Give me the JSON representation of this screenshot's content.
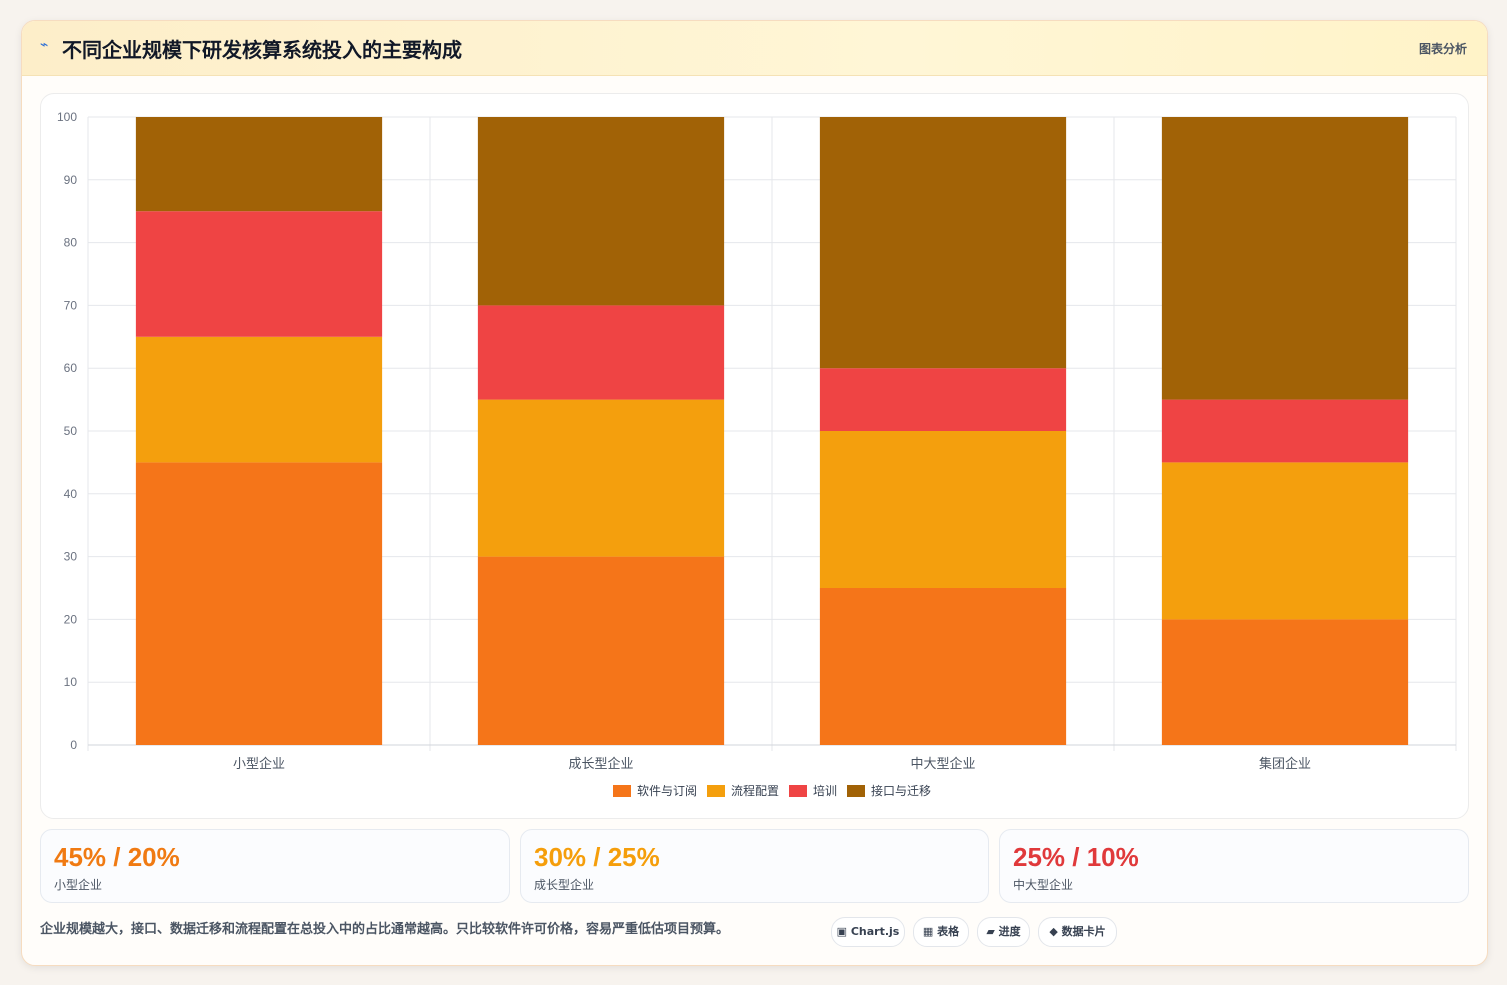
{
  "header": {
    "icon": "bolt-icon",
    "title": "不同企业规模下研发核算系统投入的主要构成",
    "analysis_label": "图表分析"
  },
  "chart_data": {
    "type": "bar",
    "stacked": true,
    "categories": [
      "小型企业",
      "成长型企业",
      "中大型企业",
      "集团企业"
    ],
    "series": [
      {
        "name": "软件与订阅",
        "color": "#f57519",
        "values": [
          45,
          30,
          25,
          20
        ]
      },
      {
        "name": "流程配置",
        "color": "#f49f0d",
        "values": [
          20,
          25,
          25,
          25
        ]
      },
      {
        "name": "培训",
        "color": "#ef4444",
        "values": [
          20,
          15,
          10,
          10
        ]
      },
      {
        "name": "接口与迁移",
        "color": "#a16206",
        "values": [
          15,
          30,
          40,
          45
        ]
      }
    ],
    "ylim": [
      0,
      100
    ],
    "yticks": [
      0,
      10,
      20,
      30,
      40,
      50,
      60,
      70,
      80,
      90,
      100
    ],
    "grid": true,
    "legend": "bottom"
  },
  "stats": [
    {
      "value": "45% / 20%",
      "label": "小型企业",
      "color": "#f07a12"
    },
    {
      "value": "30% / 25%",
      "label": "成长型企业",
      "color": "#f59e0b"
    },
    {
      "value": "25% / 10%",
      "label": "中大型企业",
      "color": "#e0393b"
    }
  ],
  "note": "企业规模越大，接口、数据迁移和流程配置在总投入中的占比通常越高。只比较软件许可价格，容易严重低估项目预算。",
  "chips": [
    {
      "icon": "chart-icon",
      "label": "▣ Chart.js"
    },
    {
      "icon": "table-icon",
      "label": "▦ 表格"
    },
    {
      "icon": "progress-icon",
      "label": "▰ 进度"
    },
    {
      "icon": "card-icon",
      "label": "◆ 数据卡片"
    }
  ]
}
